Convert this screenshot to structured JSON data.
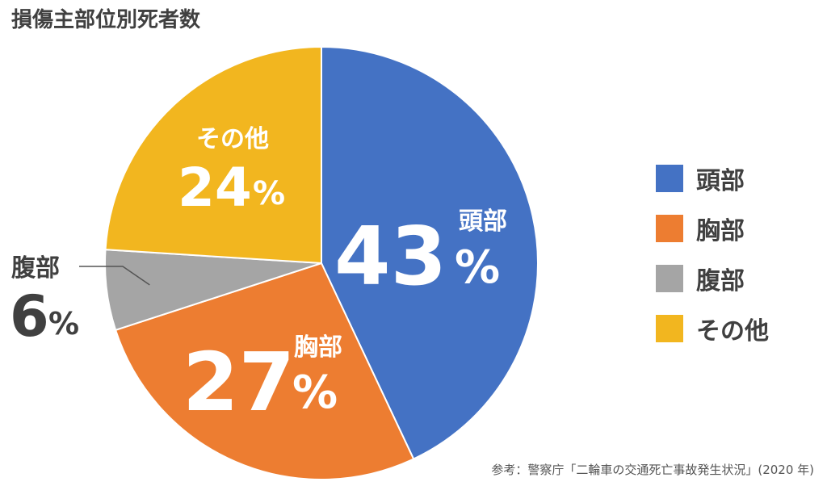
{
  "title": "損傷主部位別死者数",
  "source_note": "参考：警察庁「二輪車の交通死亡事故発生状況」(2020 年)",
  "chart_data": {
    "type": "pie",
    "title": "損傷主部位別死者数",
    "unit": "%",
    "slices": [
      {
        "label": "頭部",
        "value": 43,
        "color": "#4472C4"
      },
      {
        "label": "胸部",
        "value": 27,
        "color": "#ED7D31"
      },
      {
        "label": "腹部",
        "value": 6,
        "color": "#A5A5A5"
      },
      {
        "label": "その他",
        "value": 24,
        "color": "#F2B61F"
      }
    ],
    "legend_position": "right"
  }
}
